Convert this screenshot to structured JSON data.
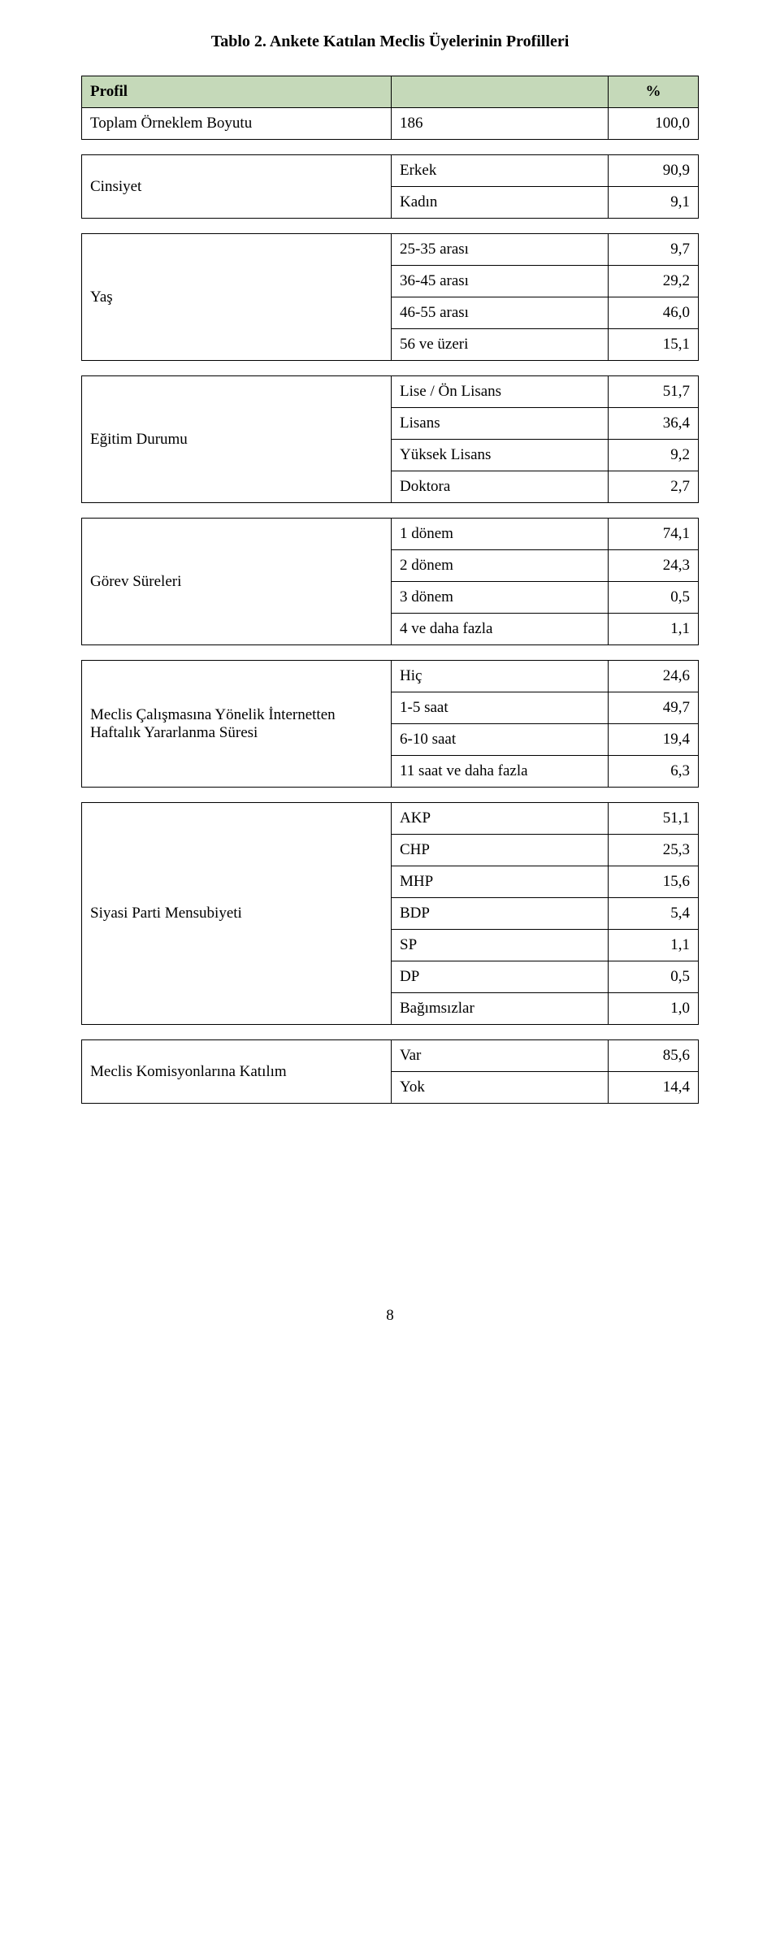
{
  "title": "Tablo 2. Ankete Katılan Meclis Üyelerinin Profilleri",
  "header": {
    "col1": "Profil",
    "col2": "%"
  },
  "toplam": {
    "label": "Toplam Örneklem Boyutu",
    "n": "186",
    "pct": "100,0"
  },
  "cinsiyet": {
    "label": "Cinsiyet",
    "rows": [
      {
        "item": "Erkek",
        "val": "90,9"
      },
      {
        "item": "Kadın",
        "val": "9,1"
      }
    ]
  },
  "yas": {
    "label": "Yaş",
    "rows": [
      {
        "item": "25-35 arası",
        "val": "9,7"
      },
      {
        "item": "36-45 arası",
        "val": "29,2"
      },
      {
        "item": "46-55 arası",
        "val": "46,0"
      },
      {
        "item": "56 ve üzeri",
        "val": "15,1"
      }
    ]
  },
  "egitim": {
    "label": "Eğitim Durumu",
    "rows": [
      {
        "item": "Lise / Ön Lisans",
        "val": "51,7"
      },
      {
        "item": "Lisans",
        "val": "36,4"
      },
      {
        "item": "Yüksek Lisans",
        "val": "9,2"
      },
      {
        "item": "Doktora",
        "val": "2,7"
      }
    ]
  },
  "gorev": {
    "label": "Görev Süreleri",
    "rows": [
      {
        "item": "1 dönem",
        "val": "74,1"
      },
      {
        "item": "2 dönem",
        "val": "24,3"
      },
      {
        "item": "3 dönem",
        "val": "0,5"
      },
      {
        "item": "4 ve daha fazla",
        "val": "1,1"
      }
    ]
  },
  "internet": {
    "label": "Meclis Çalışmasına Yönelik İnternetten Haftalık Yararlanma Süresi",
    "rows": [
      {
        "item": "Hiç",
        "val": "24,6"
      },
      {
        "item": "1-5 saat",
        "val": "49,7"
      },
      {
        "item": "6-10 saat",
        "val": "19,4"
      },
      {
        "item": "11 saat ve daha fazla",
        "val": "6,3"
      }
    ]
  },
  "parti": {
    "label": "Siyasi Parti Mensubiyeti",
    "rows": [
      {
        "item": "AKP",
        "val": "51,1"
      },
      {
        "item": "CHP",
        "val": "25,3"
      },
      {
        "item": "MHP",
        "val": "15,6"
      },
      {
        "item": "BDP",
        "val": "5,4"
      },
      {
        "item": "SP",
        "val": "1,1"
      },
      {
        "item": "DP",
        "val": "0,5"
      },
      {
        "item": "Bağımsızlar",
        "val": "1,0"
      }
    ]
  },
  "komisyon": {
    "label": "Meclis Komisyonlarına Katılım",
    "rows": [
      {
        "item": "Var",
        "val": "85,6"
      },
      {
        "item": "Yok",
        "val": "14,4"
      }
    ]
  },
  "pagenum": "8"
}
